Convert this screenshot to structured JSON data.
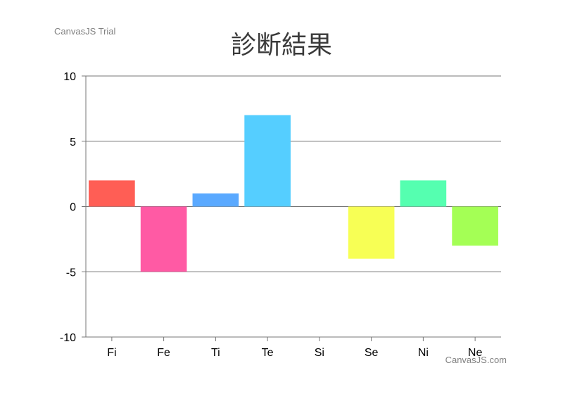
{
  "watermark_top": "CanvasJS Trial",
  "watermark_bottom": "CanvasJS.com",
  "chart_data": {
    "type": "bar",
    "title": "診断結果",
    "categories": [
      "Fi",
      "Fe",
      "Ti",
      "Te",
      "Si",
      "Se",
      "Ni",
      "Ne"
    ],
    "values": [
      2,
      -5,
      1,
      7,
      0,
      -4,
      2,
      -3
    ],
    "colors": [
      "#ff5e55",
      "#ff5aa4",
      "#5aa9ff",
      "#55ceff",
      "#bfbfbf",
      "#f7ff55",
      "#55ffb0",
      "#a4ff55"
    ],
    "ylim": [
      -10,
      10
    ],
    "yticks": [
      -10,
      -5,
      0,
      5,
      10
    ],
    "grid": true,
    "legend": "none"
  }
}
